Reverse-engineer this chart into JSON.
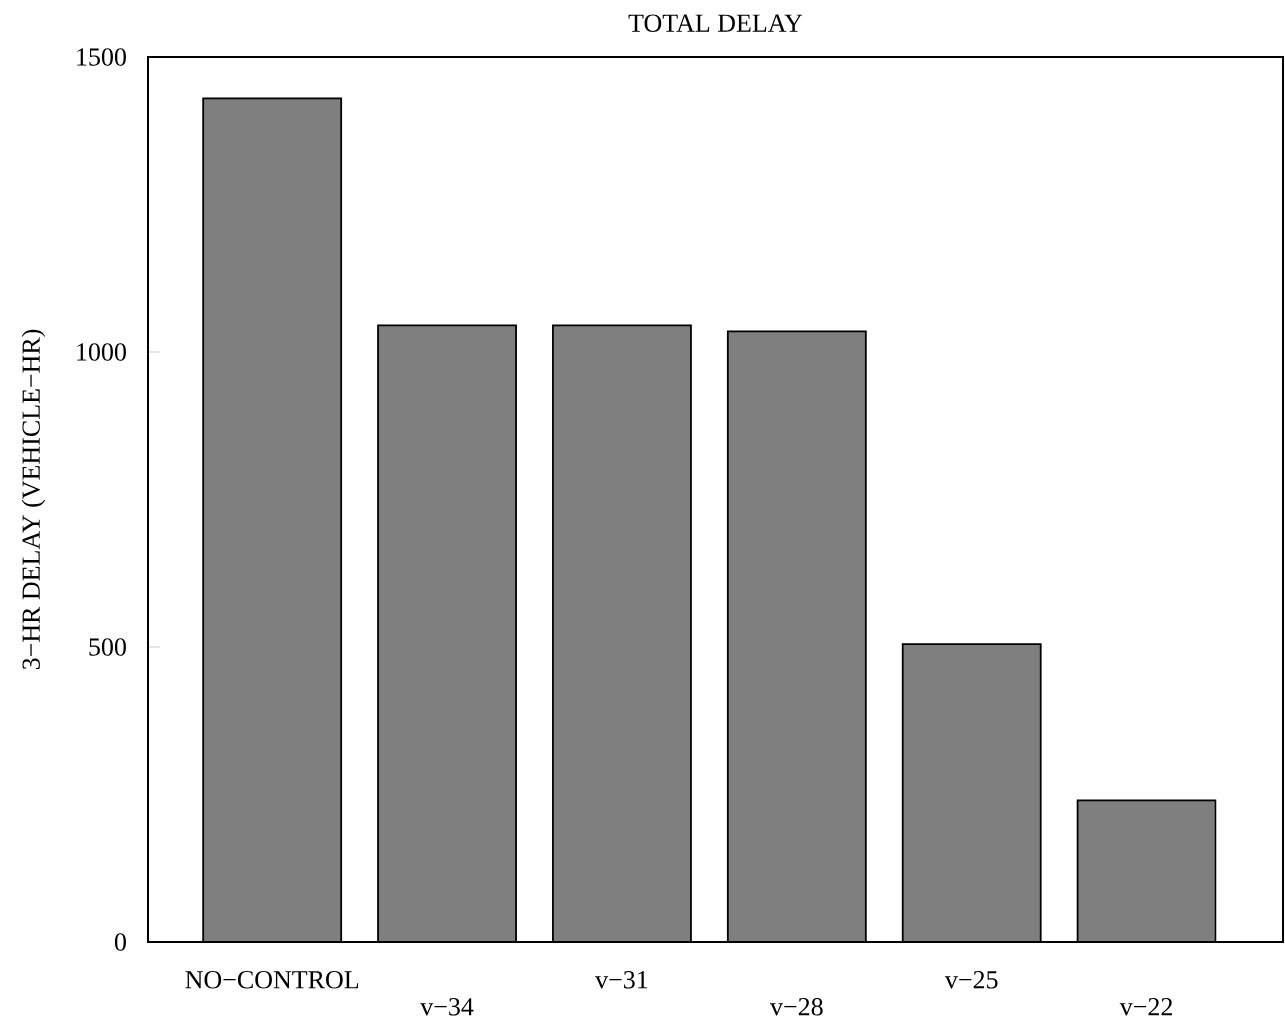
{
  "chart_data": {
    "type": "bar",
    "title": "TOTAL DELAY",
    "ylabel": "3−HR DELAY (VEHICLE−HR)",
    "categories": [
      "NO−CONTROL",
      "v−34",
      "v−31",
      "v−28",
      "v−25",
      "v−22"
    ],
    "values": [
      1430,
      1045,
      1045,
      1035,
      505,
      240
    ],
    "color": "#7f7f7f",
    "ylim": [
      0,
      1500
    ],
    "yticks": [
      0,
      500,
      1000,
      1500
    ]
  }
}
